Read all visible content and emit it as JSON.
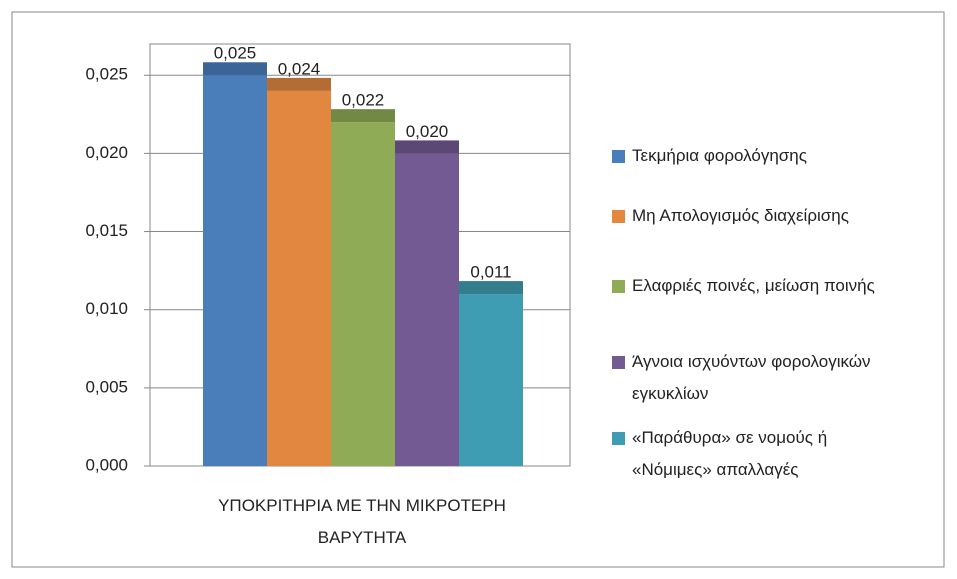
{
  "chart_data": {
    "type": "bar",
    "categories": [
      "ΥΠΟΚΡΙΤΗΡΙΑ ΜΕ ΤΗΝ ΜΙΚΡΟΤΕΡΗ ΒΑΡΥΤΗΤΑ"
    ],
    "series": [
      {
        "name": "Τεκμήρια φορολόγησης",
        "color": "#4a7ebb",
        "values": [
          0.025
        ],
        "value_labels": [
          "0,025"
        ]
      },
      {
        "name": "Μη Απολογισμός διαχείρισης",
        "color": "#e2873f",
        "values": [
          0.024
        ],
        "value_labels": [
          "0,024"
        ]
      },
      {
        "name": "Ελαφριές ποινές,  μείωση ποινής",
        "color": "#8fab55",
        "values": [
          0.022
        ],
        "value_labels": [
          "0,022"
        ]
      },
      {
        "name": "Άγνοια ισχυόντων φορολογικών εγκυκλίων",
        "color": "#735a92",
        "values": [
          0.02
        ],
        "value_labels": [
          "0,020"
        ]
      },
      {
        "name": "«Παράθυρα»  σε νομούς ή «Νόμιμες» απαλλαγές",
        "color": "#3e9db3",
        "values": [
          0.011
        ],
        "value_labels": [
          "0,011"
        ]
      }
    ],
    "ylim": [
      0,
      0.027
    ],
    "yticks": [
      {
        "value": 0,
        "label": "0,000"
      },
      {
        "value": 0.005,
        "label": "0,005"
      },
      {
        "value": 0.01,
        "label": "0,010"
      },
      {
        "value": 0.015,
        "label": "0,015"
      },
      {
        "value": 0.02,
        "label": "0,020"
      },
      {
        "value": 0.025,
        "label": "0,025"
      }
    ],
    "grid": true,
    "legend": "right"
  }
}
